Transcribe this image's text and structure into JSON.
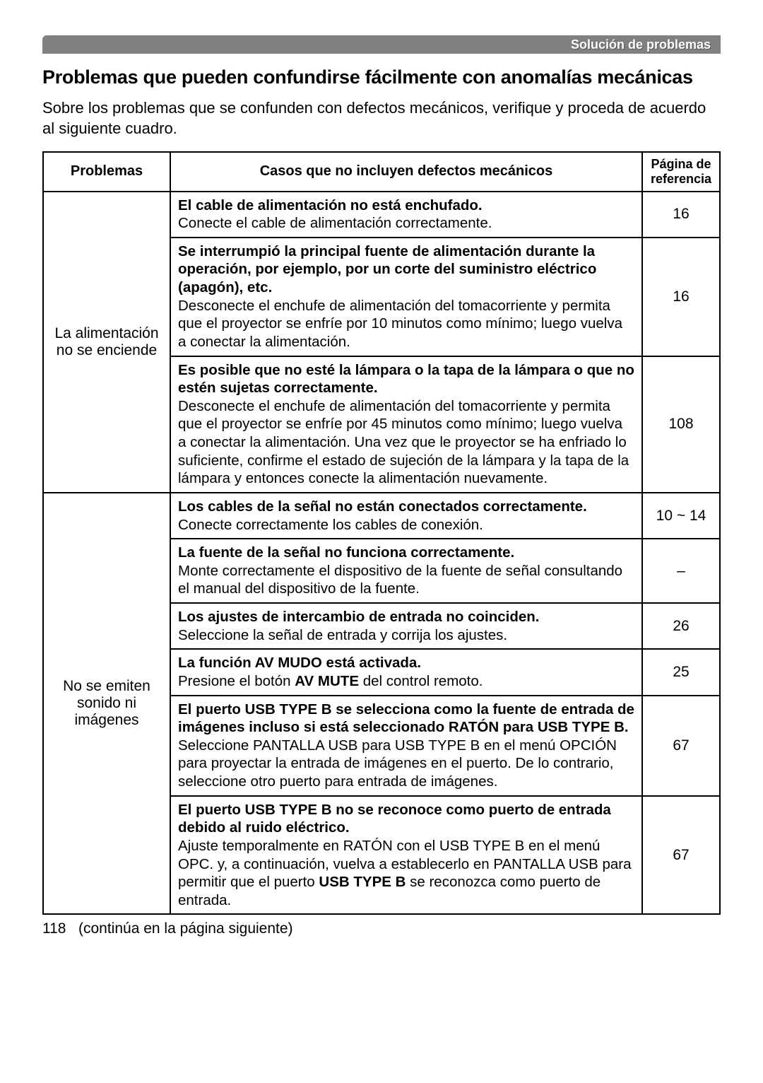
{
  "header_bar": "Solución de problemas",
  "title": "Problemas que pueden confundirse fácilmente con anomalías mecánicas",
  "intro": "Sobre los problemas que se confunden con defectos mecánicos, verifique y proceda de acuerdo al siguiente cuadro.",
  "columns": {
    "problems": "Problemas",
    "cases": "Casos que no incluyen defectos mecánicos",
    "page": "Página de referencia"
  },
  "groups": [
    {
      "problem": "La alimentación no se enciende",
      "rows": [
        {
          "bold": "El cable de alimentación no está enchufado.",
          "text": "Conecte el cable de alimentación correctamente.",
          "page": "16"
        },
        {
          "bold": "Se interrumpió la principal fuente de alimentación durante la operación, por ejemplo, por un corte del suministro eléctrico (apagón), etc.",
          "text": "Desconecte el enchufe de alimentación del tomacorriente y permita que el proyector se enfríe por 10 minutos como mínimo; luego vuelva a conectar la alimentación.",
          "page": "16"
        },
        {
          "bold": "Es posible que no esté la lámpara o la tapa de la lámpara o que no estén sujetas correctamente.",
          "text": "Desconecte el enchufe de alimentación del tomacorriente y permita que el proyector se enfríe por 45 minutos como mínimo; luego vuelva a conectar la alimentación. Una vez que le proyector se ha enfriado lo suficiente, confirme el estado de sujeción de la lámpara y la tapa de la lámpara y entonces conecte la alimentación nuevamente.",
          "page": "108"
        }
      ]
    },
    {
      "problem": "No se emiten sonido ni imágenes",
      "rows": [
        {
          "bold": "Los cables de la señal no están conectados correctamente.",
          "text": "Conecte correctamente los cables de conexión.",
          "page": "10 ~ 14"
        },
        {
          "bold": "La fuente de la señal no funciona correctamente.",
          "text": "Monte correctamente el dispositivo de la fuente de señal consultando el manual del dispositivo de la fuente.",
          "page": "–"
        },
        {
          "bold": "Los ajustes de intercambio de entrada no coinciden.",
          "text": "Seleccione la señal de entrada y corrija los ajustes.",
          "page": "26"
        },
        {
          "bold": "La función AV MUDO está activada.",
          "html": "Presione el botón <b>AV MUTE</b> del control remoto.",
          "page": "25"
        },
        {
          "bold": "El puerto USB TYPE B se selecciona como la fuente de entrada de imágenes incluso si está seleccionado RATÓN para USB TYPE B.",
          "text": "Seleccione PANTALLA USB para USB TYPE B en el menú OPCIÓN para proyectar la entrada de imágenes en el puerto. De lo contrario, seleccione otro puerto para entrada de imágenes.",
          "page": "67"
        },
        {
          "bold": "El puerto USB TYPE B no se reconoce como puerto de entrada debido al ruido eléctrico.",
          "html": "Ajuste temporalmente en RATÓN con el USB TYPE B en el menú OPC. y, a continuación, vuelva a establecerlo en PANTALLA USB para permitir que el puerto <b>USB TYPE B</b> se reconozca como puerto de entrada.",
          "page": "67"
        }
      ]
    }
  ],
  "footer_page_num": "118",
  "footer_text": "(continúa en la página siguiente)",
  "colors": {
    "header_bg": "#808080",
    "header_text": "#ffffff",
    "border": "#000000",
    "body_text": "#000000",
    "page_bg": "#ffffff"
  },
  "typography": {
    "title_fontsize": 27,
    "body_fontsize": 22,
    "cell_fontsize": 20.5,
    "header_fontsize": 20,
    "font_family": "Arial"
  }
}
